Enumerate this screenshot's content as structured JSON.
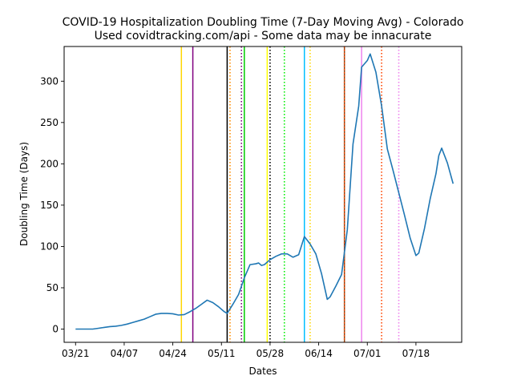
{
  "chart_data": {
    "type": "line",
    "title": "COVID-19 Hospitalization Doubling Time (7-Day Moving Avg) - Colorado",
    "subtitle": "Used covidtracking.com/api - Some data may be innacurate",
    "xlabel": "Dates",
    "ylabel": "Doubling Time (Days)",
    "year": 2020,
    "x_range": [
      "2020-03-17",
      "2020-08-03"
    ],
    "ylim": [
      -16,
      342
    ],
    "x_ticks": [
      {
        "date": "2020-03-21",
        "label": "03/21"
      },
      {
        "date": "2020-04-07",
        "label": "04/07"
      },
      {
        "date": "2020-04-24",
        "label": "04/24"
      },
      {
        "date": "2020-05-11",
        "label": "05/11"
      },
      {
        "date": "2020-05-28",
        "label": "05/28"
      },
      {
        "date": "2020-06-14",
        "label": "06/14"
      },
      {
        "date": "2020-07-01",
        "label": "07/01"
      },
      {
        "date": "2020-07-18",
        "label": "07/18"
      }
    ],
    "y_ticks": [
      0,
      50,
      100,
      150,
      200,
      250,
      300
    ],
    "grid": false,
    "series": [
      {
        "color": "#1f77b4",
        "points": [
          [
            "2020-03-21",
            0
          ],
          [
            "2020-03-23",
            0
          ],
          [
            "2020-03-25",
            0
          ],
          [
            "2020-03-27",
            0
          ],
          [
            "2020-03-29",
            1
          ],
          [
            "2020-03-31",
            2
          ],
          [
            "2020-04-02",
            3
          ],
          [
            "2020-04-04",
            3.5
          ],
          [
            "2020-04-06",
            4.5
          ],
          [
            "2020-04-08",
            6
          ],
          [
            "2020-04-10",
            8
          ],
          [
            "2020-04-12",
            10
          ],
          [
            "2020-04-14",
            12
          ],
          [
            "2020-04-16",
            15
          ],
          [
            "2020-04-18",
            18
          ],
          [
            "2020-04-20",
            19
          ],
          [
            "2020-04-22",
            19
          ],
          [
            "2020-04-24",
            18.5
          ],
          [
            "2020-04-26",
            17
          ],
          [
            "2020-04-28",
            17.5
          ],
          [
            "2020-04-30",
            21
          ],
          [
            "2020-05-02",
            25
          ],
          [
            "2020-05-04",
            30
          ],
          [
            "2020-05-06",
            35
          ],
          [
            "2020-05-08",
            32
          ],
          [
            "2020-05-10",
            27
          ],
          [
            "2020-05-12",
            21
          ],
          [
            "2020-05-13",
            19
          ],
          [
            "2020-05-15",
            30
          ],
          [
            "2020-05-17",
            42
          ],
          [
            "2020-05-19",
            62
          ],
          [
            "2020-05-21",
            78
          ],
          [
            "2020-05-23",
            79
          ],
          [
            "2020-05-24",
            80
          ],
          [
            "2020-05-25",
            77
          ],
          [
            "2020-05-26",
            78
          ],
          [
            "2020-05-28",
            84
          ],
          [
            "2020-05-30",
            88
          ],
          [
            "2020-06-01",
            91
          ],
          [
            "2020-06-03",
            91
          ],
          [
            "2020-06-05",
            87
          ],
          [
            "2020-06-07",
            90
          ],
          [
            "2020-06-09",
            112
          ],
          [
            "2020-06-11",
            103
          ],
          [
            "2020-06-13",
            91
          ],
          [
            "2020-06-15",
            67
          ],
          [
            "2020-06-17",
            36
          ],
          [
            "2020-06-18",
            39
          ],
          [
            "2020-06-20",
            52
          ],
          [
            "2020-06-22",
            66
          ],
          [
            "2020-06-24",
            120
          ],
          [
            "2020-06-26",
            224
          ],
          [
            "2020-06-28",
            270
          ],
          [
            "2020-06-29",
            317
          ],
          [
            "2020-07-01",
            325
          ],
          [
            "2020-07-02",
            333
          ],
          [
            "2020-07-04",
            311
          ],
          [
            "2020-07-06",
            270
          ],
          [
            "2020-07-08",
            218
          ],
          [
            "2020-07-10",
            192
          ],
          [
            "2020-07-12",
            165
          ],
          [
            "2020-07-14",
            138
          ],
          [
            "2020-07-16",
            110
          ],
          [
            "2020-07-18",
            89
          ],
          [
            "2020-07-19",
            92
          ],
          [
            "2020-07-21",
            122
          ],
          [
            "2020-07-23",
            158
          ],
          [
            "2020-07-25",
            188
          ],
          [
            "2020-07-26",
            210
          ],
          [
            "2020-07-27",
            219
          ],
          [
            "2020-07-29",
            201
          ],
          [
            "2020-07-31",
            176
          ]
        ]
      }
    ],
    "vlines": [
      {
        "date": "2020-04-27",
        "color": "#ffd700",
        "style": "solid"
      },
      {
        "date": "2020-05-01",
        "color": "#800080",
        "style": "solid"
      },
      {
        "date": "2020-05-13",
        "color": "#000000",
        "style": "solid"
      },
      {
        "date": "2020-05-14",
        "color": "#ff8c00",
        "style": "dotted"
      },
      {
        "date": "2020-05-18",
        "color": "#800080",
        "style": "dotted"
      },
      {
        "date": "2020-05-19",
        "color": "#00cc00",
        "style": "solid"
      },
      {
        "date": "2020-05-27",
        "color": "#ffff00",
        "style": "solid"
      },
      {
        "date": "2020-05-28",
        "color": "#000000",
        "style": "dotted"
      },
      {
        "date": "2020-06-02",
        "color": "#00ee00",
        "style": "dotted"
      },
      {
        "date": "2020-06-09",
        "color": "#00bfff",
        "style": "solid"
      },
      {
        "date": "2020-06-11",
        "color": "#ffd700",
        "style": "dotted"
      },
      {
        "date": "2020-06-23",
        "color": "#8b4513",
        "style": "solid"
      },
      {
        "date": "2020-06-23",
        "color": "#ff4500",
        "style": "dotted"
      },
      {
        "date": "2020-06-29",
        "color": "#ee82ee",
        "style": "solid"
      },
      {
        "date": "2020-07-06",
        "color": "#ff4500",
        "style": "dotted"
      },
      {
        "date": "2020-07-12",
        "color": "#ee82ee",
        "style": "dotted"
      }
    ]
  }
}
